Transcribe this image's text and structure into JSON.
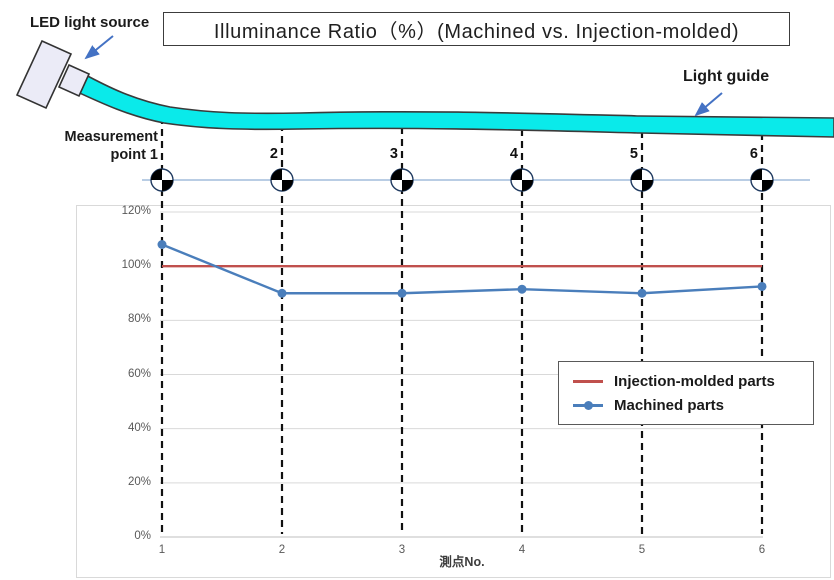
{
  "title": "Illuminance Ratio（%）(Machined vs. Injection-molded)",
  "diagram": {
    "led_label": "LED light source",
    "light_guide_label": "Light guide",
    "measurement_label_line1": "Measurement",
    "measurement_label_line2": "point 1",
    "point_numbers": [
      "2",
      "3",
      "4",
      "5",
      "6"
    ],
    "light_guide_color": "#0AEAEA",
    "led_fill_color": "#EBEBF7",
    "arrow_color": "#4472C4"
  },
  "legend": {
    "items": [
      {
        "label": "Injection-molded parts",
        "color": "#C0504D",
        "marker": false
      },
      {
        "label": "Machined parts",
        "color": "#4A7EBB",
        "marker": true
      }
    ]
  },
  "chart_data": {
    "type": "line",
    "x": [
      1,
      2,
      3,
      4,
      5,
      6
    ],
    "xticks": [
      "1",
      "2",
      "3",
      "4",
      "5",
      "6"
    ],
    "yticks": [
      "0%",
      "20%",
      "40%",
      "60%",
      "80%",
      "100%",
      "120%"
    ],
    "ylim": [
      0,
      120
    ],
    "series": [
      {
        "name": "Injection-molded parts",
        "color": "#C0504D",
        "values": [
          100,
          100,
          100,
          100,
          100,
          100
        ],
        "marker": false
      },
      {
        "name": "Machined parts",
        "color": "#4A7EBB",
        "values": [
          108,
          90,
          90,
          91.5,
          90,
          92.5
        ],
        "marker": true
      }
    ],
    "title": "Illuminance Ratio（%）(Machined vs. Injection-molded)",
    "xlabel": "測点No.",
    "ylabel": "",
    "grid": true,
    "legend_position": "inside-right"
  }
}
